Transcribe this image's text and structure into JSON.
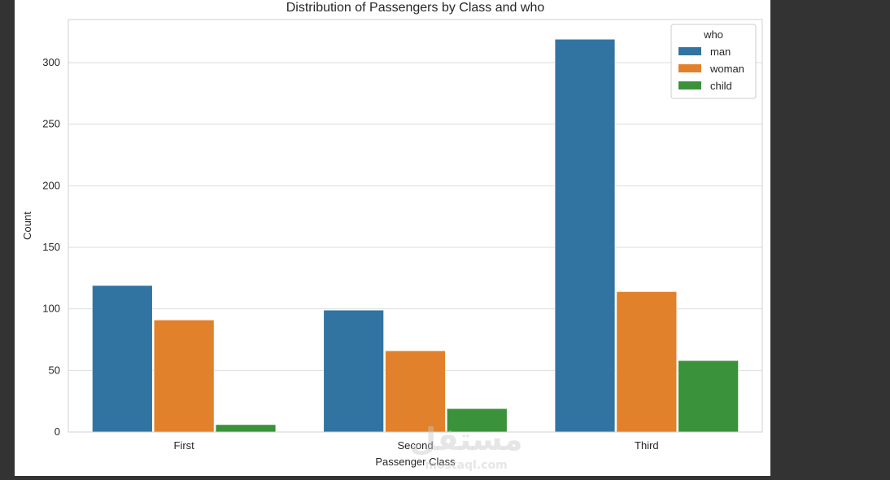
{
  "colors": {
    "man": "#3274a1",
    "woman": "#e1812c",
    "child": "#3a923a",
    "grid": "#dddddd",
    "page_background": "#333333"
  },
  "chart_data": {
    "type": "bar",
    "title": "Distribution of Passengers by Class and who",
    "xlabel": "Passenger Class",
    "ylabel": "Count",
    "categories": [
      "First",
      "Second",
      "Third"
    ],
    "series": [
      {
        "name": "man",
        "color": "#3274a1",
        "values": [
          119,
          99,
          319
        ]
      },
      {
        "name": "woman",
        "color": "#e1812c",
        "values": [
          91,
          66,
          114
        ]
      },
      {
        "name": "child",
        "color": "#3a923a",
        "values": [
          6,
          19,
          58
        ]
      }
    ],
    "ylim": [
      0,
      335
    ],
    "yticks": [
      0,
      50,
      100,
      150,
      200,
      250,
      300
    ],
    "grid": true,
    "legend": {
      "title": "who",
      "position": "top-right"
    }
  },
  "watermark": {
    "text": "مستقل",
    "subtext": "mostaql.com"
  }
}
